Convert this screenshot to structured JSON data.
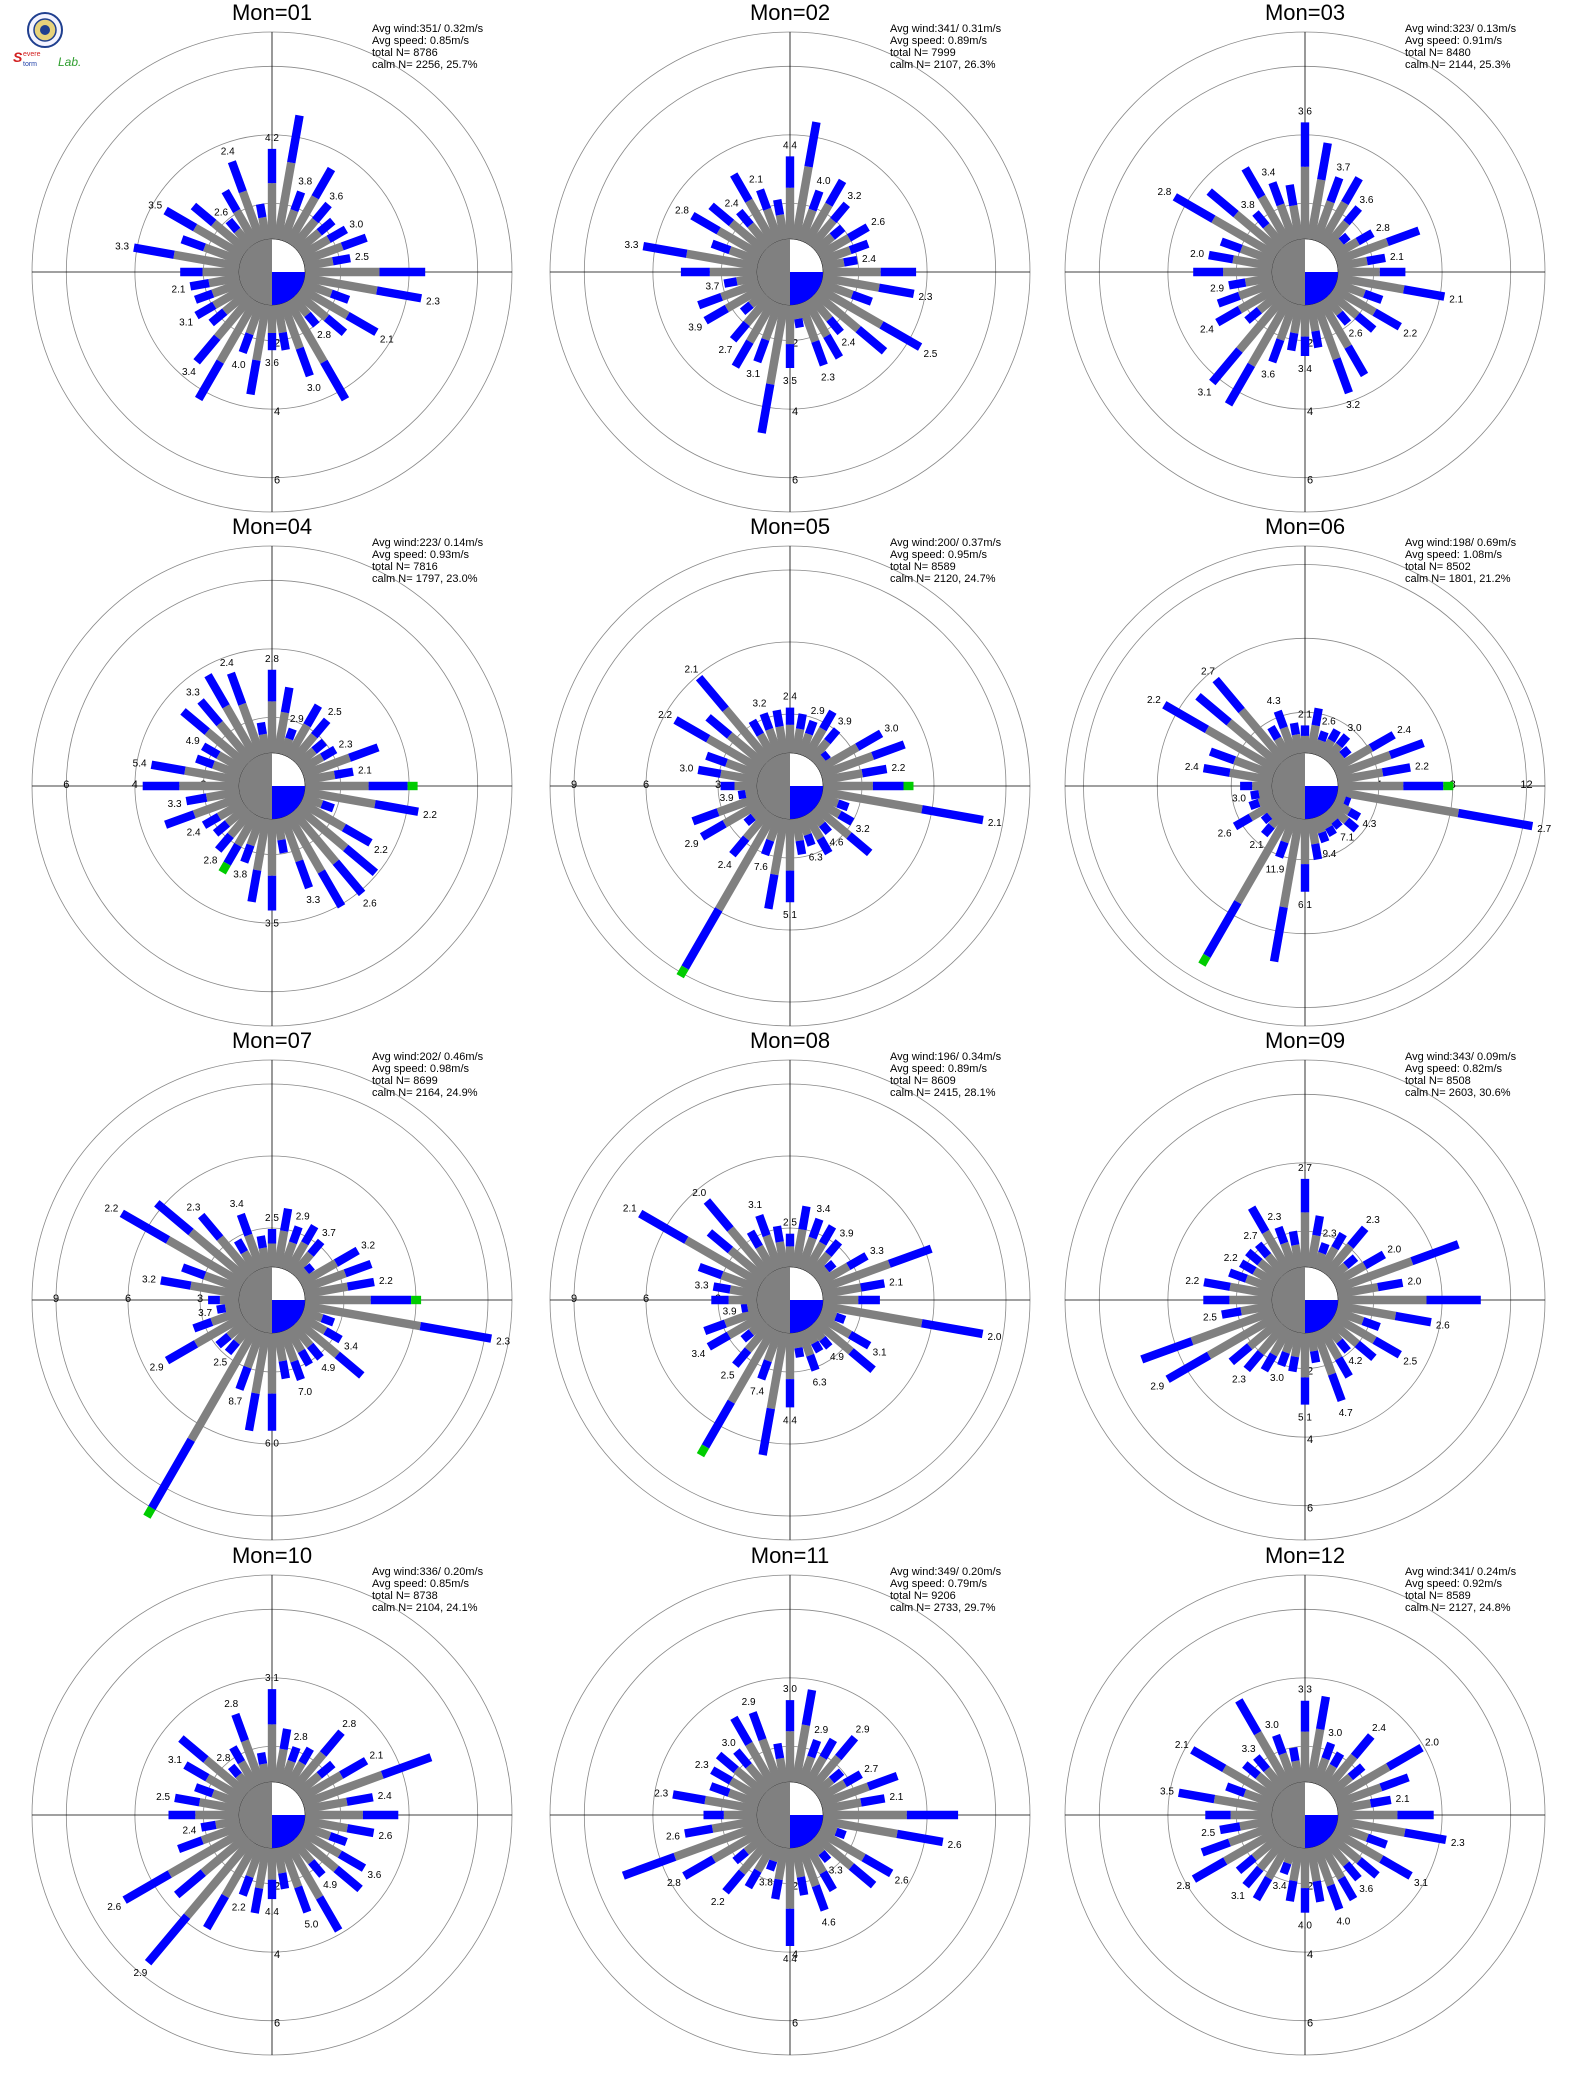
{
  "logo": {
    "brand": "Severe Storm Lab.",
    "icon": "seal-icon",
    "colors": {
      "seal": "#1f3f8f",
      "severe": "#d21f1f",
      "storm": "#1f3fa8",
      "lab": "#2e9e2e"
    }
  },
  "colors": {
    "low_speed": "#808080",
    "mid_speed": "#0000ff",
    "high_speed": "#00cc00",
    "calm_left": "#808080",
    "calm_vector": "#0000ff",
    "axes": "#000000",
    "rings": "#888888"
  },
  "chart_data": [
    {
      "type": "polar-bar",
      "title": "Mon=01",
      "stats": {
        "avg_wind": "Avg wind:351/ 0.32m/s",
        "avg_speed": "Avg speed: 0.85m/s",
        "total_n": "total N=      8786",
        "calm_n": "calm N=   2256,  25.7%"
      },
      "radial_ticks": [
        "2",
        "4",
        "6"
      ],
      "rmax": 7,
      "sector_labels": [
        "4.2",
        "3.8",
        "3.6",
        "3.0",
        "2.5",
        "2.3",
        "2.1",
        "2.8",
        "3.0",
        "3.6",
        "4.0",
        "3.4",
        "3.1",
        "2.1",
        "3.3",
        "3.5",
        "2.6",
        "2.4",
        "2.2"
      ],
      "calm_direction_deg": 130
    },
    {
      "type": "polar-bar",
      "title": "Mon=02",
      "stats": {
        "avg_wind": "Avg wind:341/ 0.31m/s",
        "avg_speed": "Avg speed: 0.89m/s",
        "total_n": "total N=      7999",
        "calm_n": "calm N=   2107,  26.3%"
      },
      "radial_ticks": [
        "2",
        "4",
        "6"
      ],
      "rmax": 7,
      "sector_labels": [
        "4.4",
        "4.0",
        "3.2",
        "2.6",
        "2.4",
        "2.3",
        "2.5",
        "2.4",
        "2.3",
        "3.5",
        "3.1",
        "2.7",
        "3.9",
        "3.7",
        "3.3",
        "2.8",
        "2.4",
        "2.1",
        "2.1"
      ],
      "calm_direction_deg": 160
    },
    {
      "type": "polar-bar",
      "title": "Mon=03",
      "stats": {
        "avg_wind": "Avg wind:323/ 0.13m/s",
        "avg_speed": "Avg speed: 0.91m/s",
        "total_n": "total N=      8480",
        "calm_n": "calm N=   2144,  25.3%"
      },
      "radial_ticks": [
        "2",
        "4",
        "6"
      ],
      "rmax": 7,
      "sector_labels": [
        "3.6",
        "3.7",
        "3.6",
        "2.8",
        "2.1",
        "2.1",
        "2.2",
        "2.6",
        "3.2",
        "3.4",
        "3.6",
        "3.1",
        "2.4",
        "2.9",
        "2.0",
        "2.8",
        "3.8",
        "3.4",
        "2.2",
        "2.2"
      ],
      "calm_direction_deg": 120
    },
    {
      "type": "polar-bar",
      "title": "Mon=04",
      "stats": {
        "avg_wind": "Avg wind:223/ 0.14m/s",
        "avg_speed": "Avg speed: 0.93m/s",
        "total_n": "total N=      7816",
        "calm_n": "calm N=   1797,  23.0%"
      },
      "radial_ticks": [
        "2",
        "4",
        "6"
      ],
      "rmax": 7,
      "sector_labels": [
        "2.8",
        "2.9",
        "2.5",
        "2.3",
        "2.1",
        "2.2",
        "2.2",
        "2.6",
        "3.3",
        "3.5",
        "3.8",
        "2.8",
        "2.4",
        "3.3",
        "5.4",
        "4.9",
        "3.3",
        "2.4"
      ],
      "calm_direction_deg": 110,
      "green_east": true
    },
    {
      "type": "polar-bar",
      "title": "Mon=05",
      "stats": {
        "avg_wind": "Avg wind:200/ 0.37m/s",
        "avg_speed": "Avg speed: 0.95m/s",
        "total_n": "total N=      8589",
        "calm_n": "calm N=   2120,  24.7%"
      },
      "radial_ticks": [
        "3",
        "6",
        "9"
      ],
      "rmax": 10,
      "sector_labels": [
        "2.4",
        "2.9",
        "3.9",
        "3.0",
        "2.2",
        "2.1",
        "3.2",
        "4.6",
        "6.3",
        "5.1",
        "7.6"
      ],
      "calm_direction_deg": 100,
      "green_east": true
    },
    {
      "type": "polar-bar",
      "title": "Mon=06",
      "stats": {
        "avg_wind": "Avg wind:198/ 0.69m/s",
        "avg_speed": "Avg speed: 1.08m/s",
        "total_n": "total N=      8502",
        "calm_n": "calm N=   1801,  21.2%"
      },
      "radial_ticks": [
        "4",
        "8",
        "12"
      ],
      "rmax": 13,
      "sector_labels": [
        "2.1",
        "2.6",
        "3.0",
        "2.4",
        "2.2",
        "2.7",
        "4.3",
        "7.1",
        "9.4",
        "6.1",
        "11.9"
      ],
      "calm_direction_deg": 100,
      "green_east": true
    },
    {
      "type": "polar-bar",
      "title": "Mon=07",
      "stats": {
        "avg_wind": "Avg wind:202/ 0.46m/s",
        "avg_speed": "Avg speed: 0.98m/s",
        "total_n": "total N=      8699",
        "calm_n": "calm N=   2164,  24.9%"
      },
      "radial_ticks": [
        "3",
        "6",
        "9"
      ],
      "rmax": 10,
      "sector_labels": [
        "2.5",
        "2.9",
        "3.7",
        "3.2",
        "2.2",
        "2.3",
        "3.4",
        "4.9",
        "7.0",
        "6.0",
        "8.7"
      ],
      "calm_direction_deg": 110,
      "green_east": true
    },
    {
      "type": "polar-bar",
      "title": "Mon=08",
      "stats": {
        "avg_wind": "Avg wind:196/ 0.34m/s",
        "avg_speed": "Avg speed: 0.89m/s",
        "total_n": "total N=      8609",
        "calm_n": "calm N=   2415,  28.1%"
      },
      "radial_ticks": [
        "3",
        "6",
        "9"
      ],
      "rmax": 10,
      "sector_labels": [
        "2.5",
        "3.4",
        "3.9",
        "3.3",
        "2.1",
        "2.0",
        "3.1",
        "4.9",
        "6.3",
        "4.4",
        "7.4"
      ],
      "calm_direction_deg": 110
    },
    {
      "type": "polar-bar",
      "title": "Mon=09",
      "stats": {
        "avg_wind": "Avg wind:343/ 0.09m/s",
        "avg_speed": "Avg speed: 0.82m/s",
        "total_n": "total N=      8508",
        "calm_n": "calm N=   2603,  30.6%"
      },
      "radial_ticks": [
        "2",
        "4",
        "6"
      ],
      "rmax": 7,
      "sector_labels": [
        "2.7",
        "2.3",
        "2.3",
        "2.0",
        "2.0",
        "2.6",
        "2.5",
        "4.2",
        "4.7",
        "5.1",
        "3.0",
        "2.3",
        "2.9",
        "2.5",
        "2.2",
        "2.2"
      ],
      "calm_direction_deg": 130
    },
    {
      "type": "polar-bar",
      "title": "Mon=10",
      "stats": {
        "avg_wind": "Avg wind:336/ 0.20m/s",
        "avg_speed": "Avg speed: 0.85m/s",
        "total_n": "total N=      8738",
        "calm_n": "calm N=   2104,  24.1%"
      },
      "radial_ticks": [
        "2",
        "4",
        "6"
      ],
      "rmax": 7,
      "sector_labels": [
        "3.1",
        "2.8",
        "2.8",
        "2.1",
        "2.4",
        "2.6",
        "3.6",
        "4.9",
        "5.0",
        "4.4",
        "2.2",
        "2.9",
        "2.6",
        "2.4",
        "2.5"
      ],
      "calm_direction_deg": 130
    },
    {
      "type": "polar-bar",
      "title": "Mon=11",
      "stats": {
        "avg_wind": "Avg wind:349/ 0.20m/s",
        "avg_speed": "Avg speed: 0.79m/s",
        "total_n": "total N=      9206",
        "calm_n": "calm N=   2733,  29.7%"
      },
      "radial_ticks": [
        "2",
        "4",
        "6"
      ],
      "rmax": 7,
      "sector_labels": [
        "3.0",
        "2.9",
        "2.9",
        "2.7",
        "2.1",
        "2.6",
        "2.6",
        "3.3",
        "4.6",
        "4.4",
        "3.8",
        "2.2",
        "2.8",
        "2.6",
        "2.3",
        "2.3"
      ],
      "calm_direction_deg": 150
    },
    {
      "type": "polar-bar",
      "title": "Mon=12",
      "stats": {
        "avg_wind": "Avg wind:341/ 0.24m/s",
        "avg_speed": "Avg speed: 0.92m/s",
        "total_n": "total N=      8589",
        "calm_n": "calm N=   2127,  24.8%"
      },
      "radial_ticks": [
        "2",
        "4",
        "6"
      ],
      "rmax": 7,
      "sector_labels": [
        "3.3",
        "3.0",
        "2.4",
        "2.0",
        "2.1",
        "2.3",
        "3.1",
        "3.6",
        "4.0",
        "4.0",
        "3.4",
        "3.1",
        "2.8",
        "2.5",
        "3.5",
        "2.1"
      ],
      "calm_direction_deg": 120
    }
  ]
}
